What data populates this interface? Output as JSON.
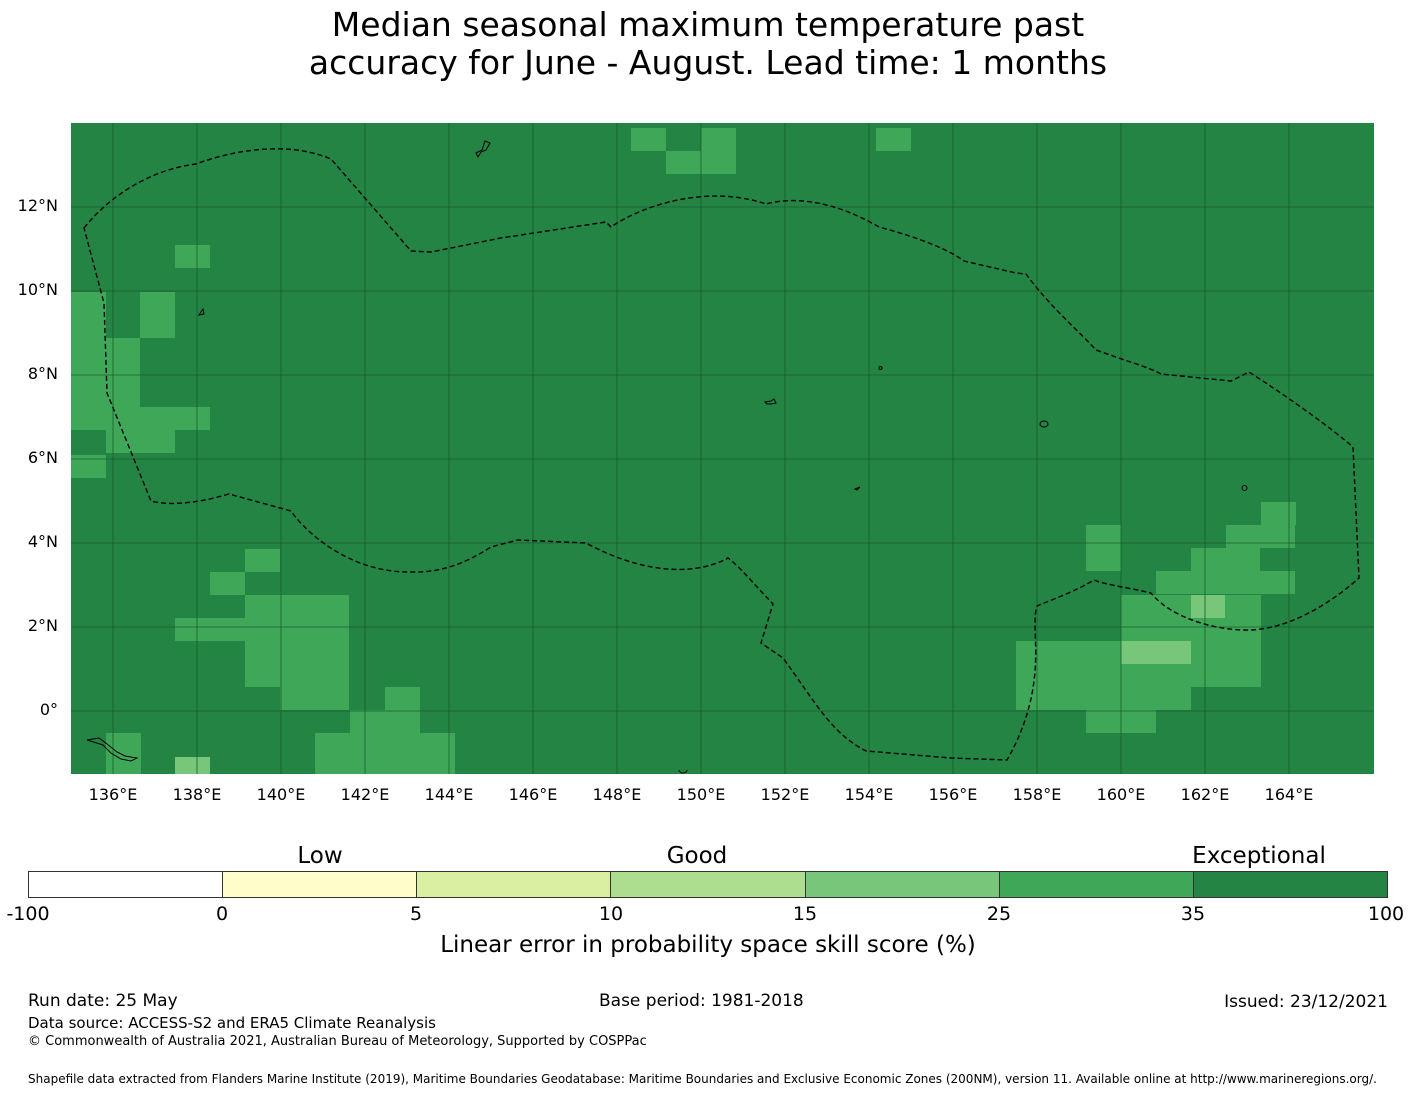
{
  "title_line1": "Median seasonal maximum temperature past",
  "title_line2": "accuracy for June - August. Lead time: 1 months",
  "map": {
    "background_color": "#238443",
    "cell_colors": {
      "25-35": "#3ea858",
      "15-25": "#78c679"
    },
    "lat_labels": [
      "12°N",
      "10°N",
      "8°N",
      "6°N",
      "4°N",
      "2°N",
      "0°"
    ],
    "lon_labels": [
      "136°E",
      "138°E",
      "140°E",
      "142°E",
      "144°E",
      "146°E",
      "148°E",
      "150°E",
      "152°E",
      "154°E",
      "156°E",
      "158°E",
      "160°E",
      "162°E",
      "164°E"
    ],
    "boundary_style": "dashed black line (EEZ)"
  },
  "legend": {
    "categories": [
      "Low",
      "Good",
      "Exceptional"
    ],
    "ticks": [
      "-100",
      "0",
      "5",
      "10",
      "15",
      "25",
      "35",
      "100"
    ],
    "colors": [
      "#ffffff",
      "#ffffcc",
      "#d9f0a3",
      "#addd8e",
      "#78c679",
      "#3ea858",
      "#238443"
    ],
    "label": "Linear error in probability space skill score (%)"
  },
  "footer": {
    "run_date": "Run date: 25 May",
    "base_period": "Base period: 1981-2018",
    "issued": "Issued: 23/12/2021",
    "data_source": "Data source: ACCESS-S2 and ERA5 Climate Reanalysis",
    "copyright": "© Commonwealth of Australia 2021, Australian Bureau of Meteorology, Supported by COSPPac",
    "shapefile": "Shapefile data extracted from Flanders Marine Institute (2019), Maritime Boundaries Geodatabase: Maritime Boundaries and Exclusive Economic Zones (200NM), version 11. Available online at http://www.marineregions.org/."
  }
}
